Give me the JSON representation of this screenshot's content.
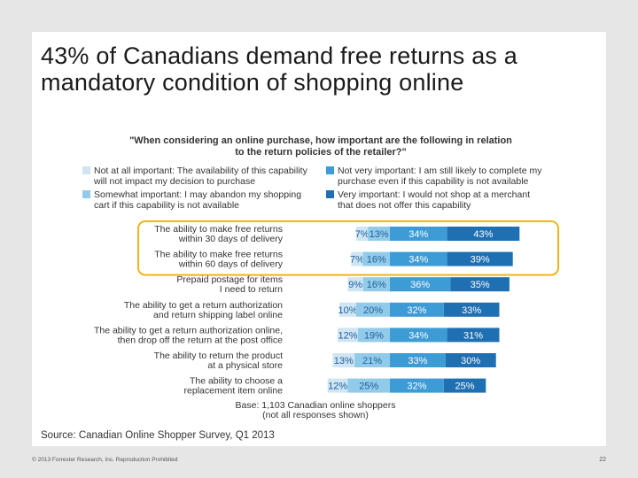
{
  "slide": {
    "title": "43% of Canadians demand free returns as a mandatory condition of shopping online",
    "source": "Source: Canadian Online Shopper Survey, Q1 2013",
    "footer_left": "© 2013 Forrester Research, Inc. Reproduction Prohibited",
    "page_number": "22"
  },
  "chart_data": {
    "type": "bar",
    "stacked": true,
    "orientation": "horizontal",
    "title": "\"When considering an online purchase, how important are the following in relation to the return policies of the retailer?\"",
    "title_lines": [
      "\"When considering an online purchase, how important are the following in relation",
      "to the return policies of the retailer?\""
    ],
    "base_note_lines": [
      "Base: 1,103 Canadian online shoppers",
      "(not all responses shown)"
    ],
    "legend_position": "top",
    "value_suffix": "%",
    "categories": [
      [
        "The ability to make free returns",
        "within 30 days of delivery"
      ],
      [
        "The ability to make free returns",
        "within 60 days of delivery"
      ],
      [
        "Prepaid postage for items",
        "I need to return"
      ],
      [
        "The ability to get a return authorization",
        "and return shipping label online"
      ],
      [
        "The ability to get a return authorization online,",
        "then drop off the return at the post office"
      ],
      [
        "The ability to return the product",
        "at a physical store"
      ],
      [
        "The ability to choose a",
        "replacement item online"
      ]
    ],
    "series": [
      {
        "name": [
          "Not at all important: The availability of this capability",
          "will not impact my decision to purchase"
        ],
        "color": "#cfe5f3",
        "values": [
          7,
          7,
          9,
          10,
          12,
          13,
          12
        ]
      },
      {
        "name": [
          "Somewhat important: I may abandon my shopping",
          "cart if this capability is not available"
        ],
        "color": "#92cbe9",
        "values": [
          13,
          16,
          16,
          20,
          19,
          21,
          25
        ]
      },
      {
        "name": [
          "Not very important: I am still likely to complete my",
          "purchase even if this capability is not available"
        ],
        "color": "#3d9bd6",
        "values": [
          34,
          34,
          36,
          32,
          34,
          33,
          32
        ]
      },
      {
        "name": [
          "Very important: I would not shop at a merchant",
          "that does not offer this capability"
        ],
        "color": "#1f6fb3",
        "values": [
          43,
          39,
          35,
          33,
          31,
          30,
          25
        ]
      }
    ],
    "highlighted_categories": [
      0,
      1
    ],
    "highlight_color": "#f2b31b"
  }
}
